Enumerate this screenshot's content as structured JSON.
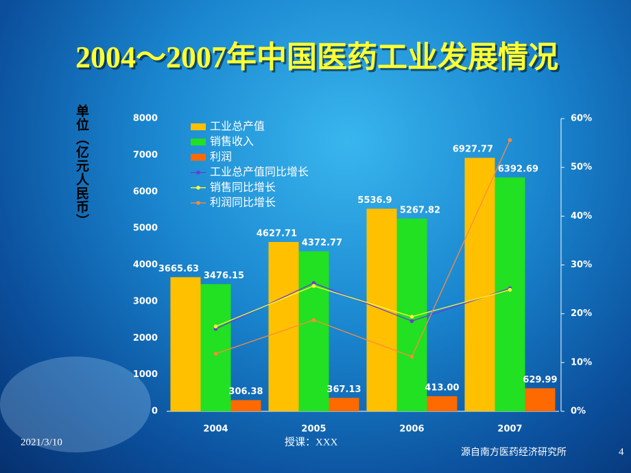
{
  "chart_data": {
    "type": "bar",
    "title": "2004～2007年中国医药工业发展情况",
    "ylabel": "单位（亿元人民币）",
    "categories": [
      "2004",
      "2005",
      "2006",
      "2007"
    ],
    "ylim": [
      0,
      8000
    ],
    "yticks": [
      0,
      1000,
      2000,
      3000,
      4000,
      5000,
      6000,
      7000,
      8000
    ],
    "y2lim": [
      0,
      60
    ],
    "y2ticks": [
      {
        "value": 0,
        "label": "0%"
      },
      {
        "value": 10,
        "label": "10%"
      },
      {
        "value": 20,
        "label": "20%"
      },
      {
        "value": 30,
        "label": "30%"
      },
      {
        "value": 40,
        "label": "40%"
      },
      {
        "value": 50,
        "label": "50%"
      },
      {
        "value": 60,
        "label": "60%"
      }
    ],
    "series": [
      {
        "name": "工业总产值",
        "type": "bar",
        "color": "#ffc000",
        "values": [
          3665.63,
          4627.71,
          5536.9,
          6927.77
        ],
        "value_labels": [
          "3665.63",
          "4627.71",
          "5536.9",
          "6927.77"
        ]
      },
      {
        "name": "销售收入",
        "type": "bar",
        "color": "#22e022",
        "values": [
          3476.15,
          4372.77,
          5267.82,
          6392.69
        ],
        "value_labels": [
          "3476.15",
          "4372.77",
          "5267.82",
          "6392.69"
        ]
      },
      {
        "name": "利润",
        "type": "bar",
        "color": "#ff6a00",
        "values": [
          306.38,
          367.13,
          413.0,
          629.99
        ],
        "value_labels": [
          "306.38",
          "367.13",
          "413.00",
          "629.99"
        ]
      },
      {
        "name": "工业总产值同比增长",
        "type": "line",
        "axis": "y2",
        "color": "#6a3ad8",
        "values": [
          16.9,
          26.3,
          18.5,
          25.2
        ]
      },
      {
        "name": "销售同比增长",
        "type": "line",
        "axis": "y2",
        "color": "#ffff33",
        "values": [
          17.4,
          25.7,
          19.4,
          24.9
        ]
      },
      {
        "name": "利润同比增长",
        "type": "line",
        "axis": "y2",
        "color": "#ff8a3a",
        "values": [
          11.8,
          18.7,
          11.2,
          55.6
        ]
      }
    ]
  },
  "footer": {
    "date": "2021/3/10",
    "lecturer": "授课：XXX",
    "source": "源自南方医药经济研究所",
    "page": "4"
  }
}
